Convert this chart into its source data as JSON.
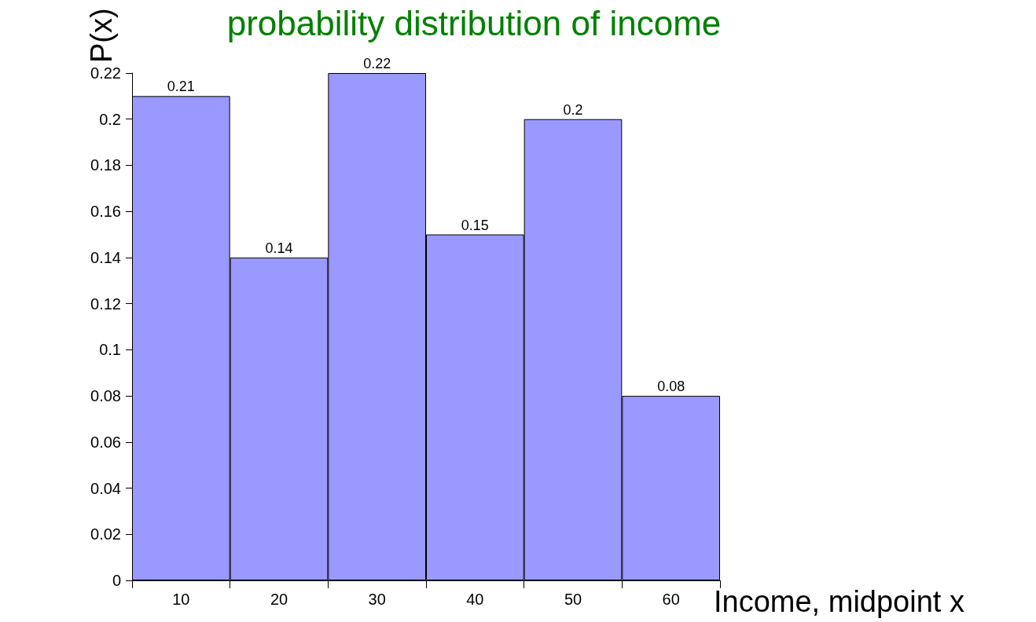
{
  "chart_data": {
    "type": "bar",
    "title": "probability distribution of income",
    "xlabel": "Income, midpoint x",
    "ylabel": "P(x)",
    "categories": [
      "10",
      "20",
      "30",
      "40",
      "50",
      "60"
    ],
    "values": [
      0.21,
      0.14,
      0.22,
      0.15,
      0.2,
      0.08
    ],
    "color": "#9999ff",
    "ylim": [
      0,
      0.22
    ],
    "yticks": [
      0,
      0.02,
      0.04,
      0.06,
      0.08,
      0.1,
      0.12,
      0.14,
      0.16,
      0.18,
      0.2,
      0.22
    ],
    "data_labels": true
  }
}
